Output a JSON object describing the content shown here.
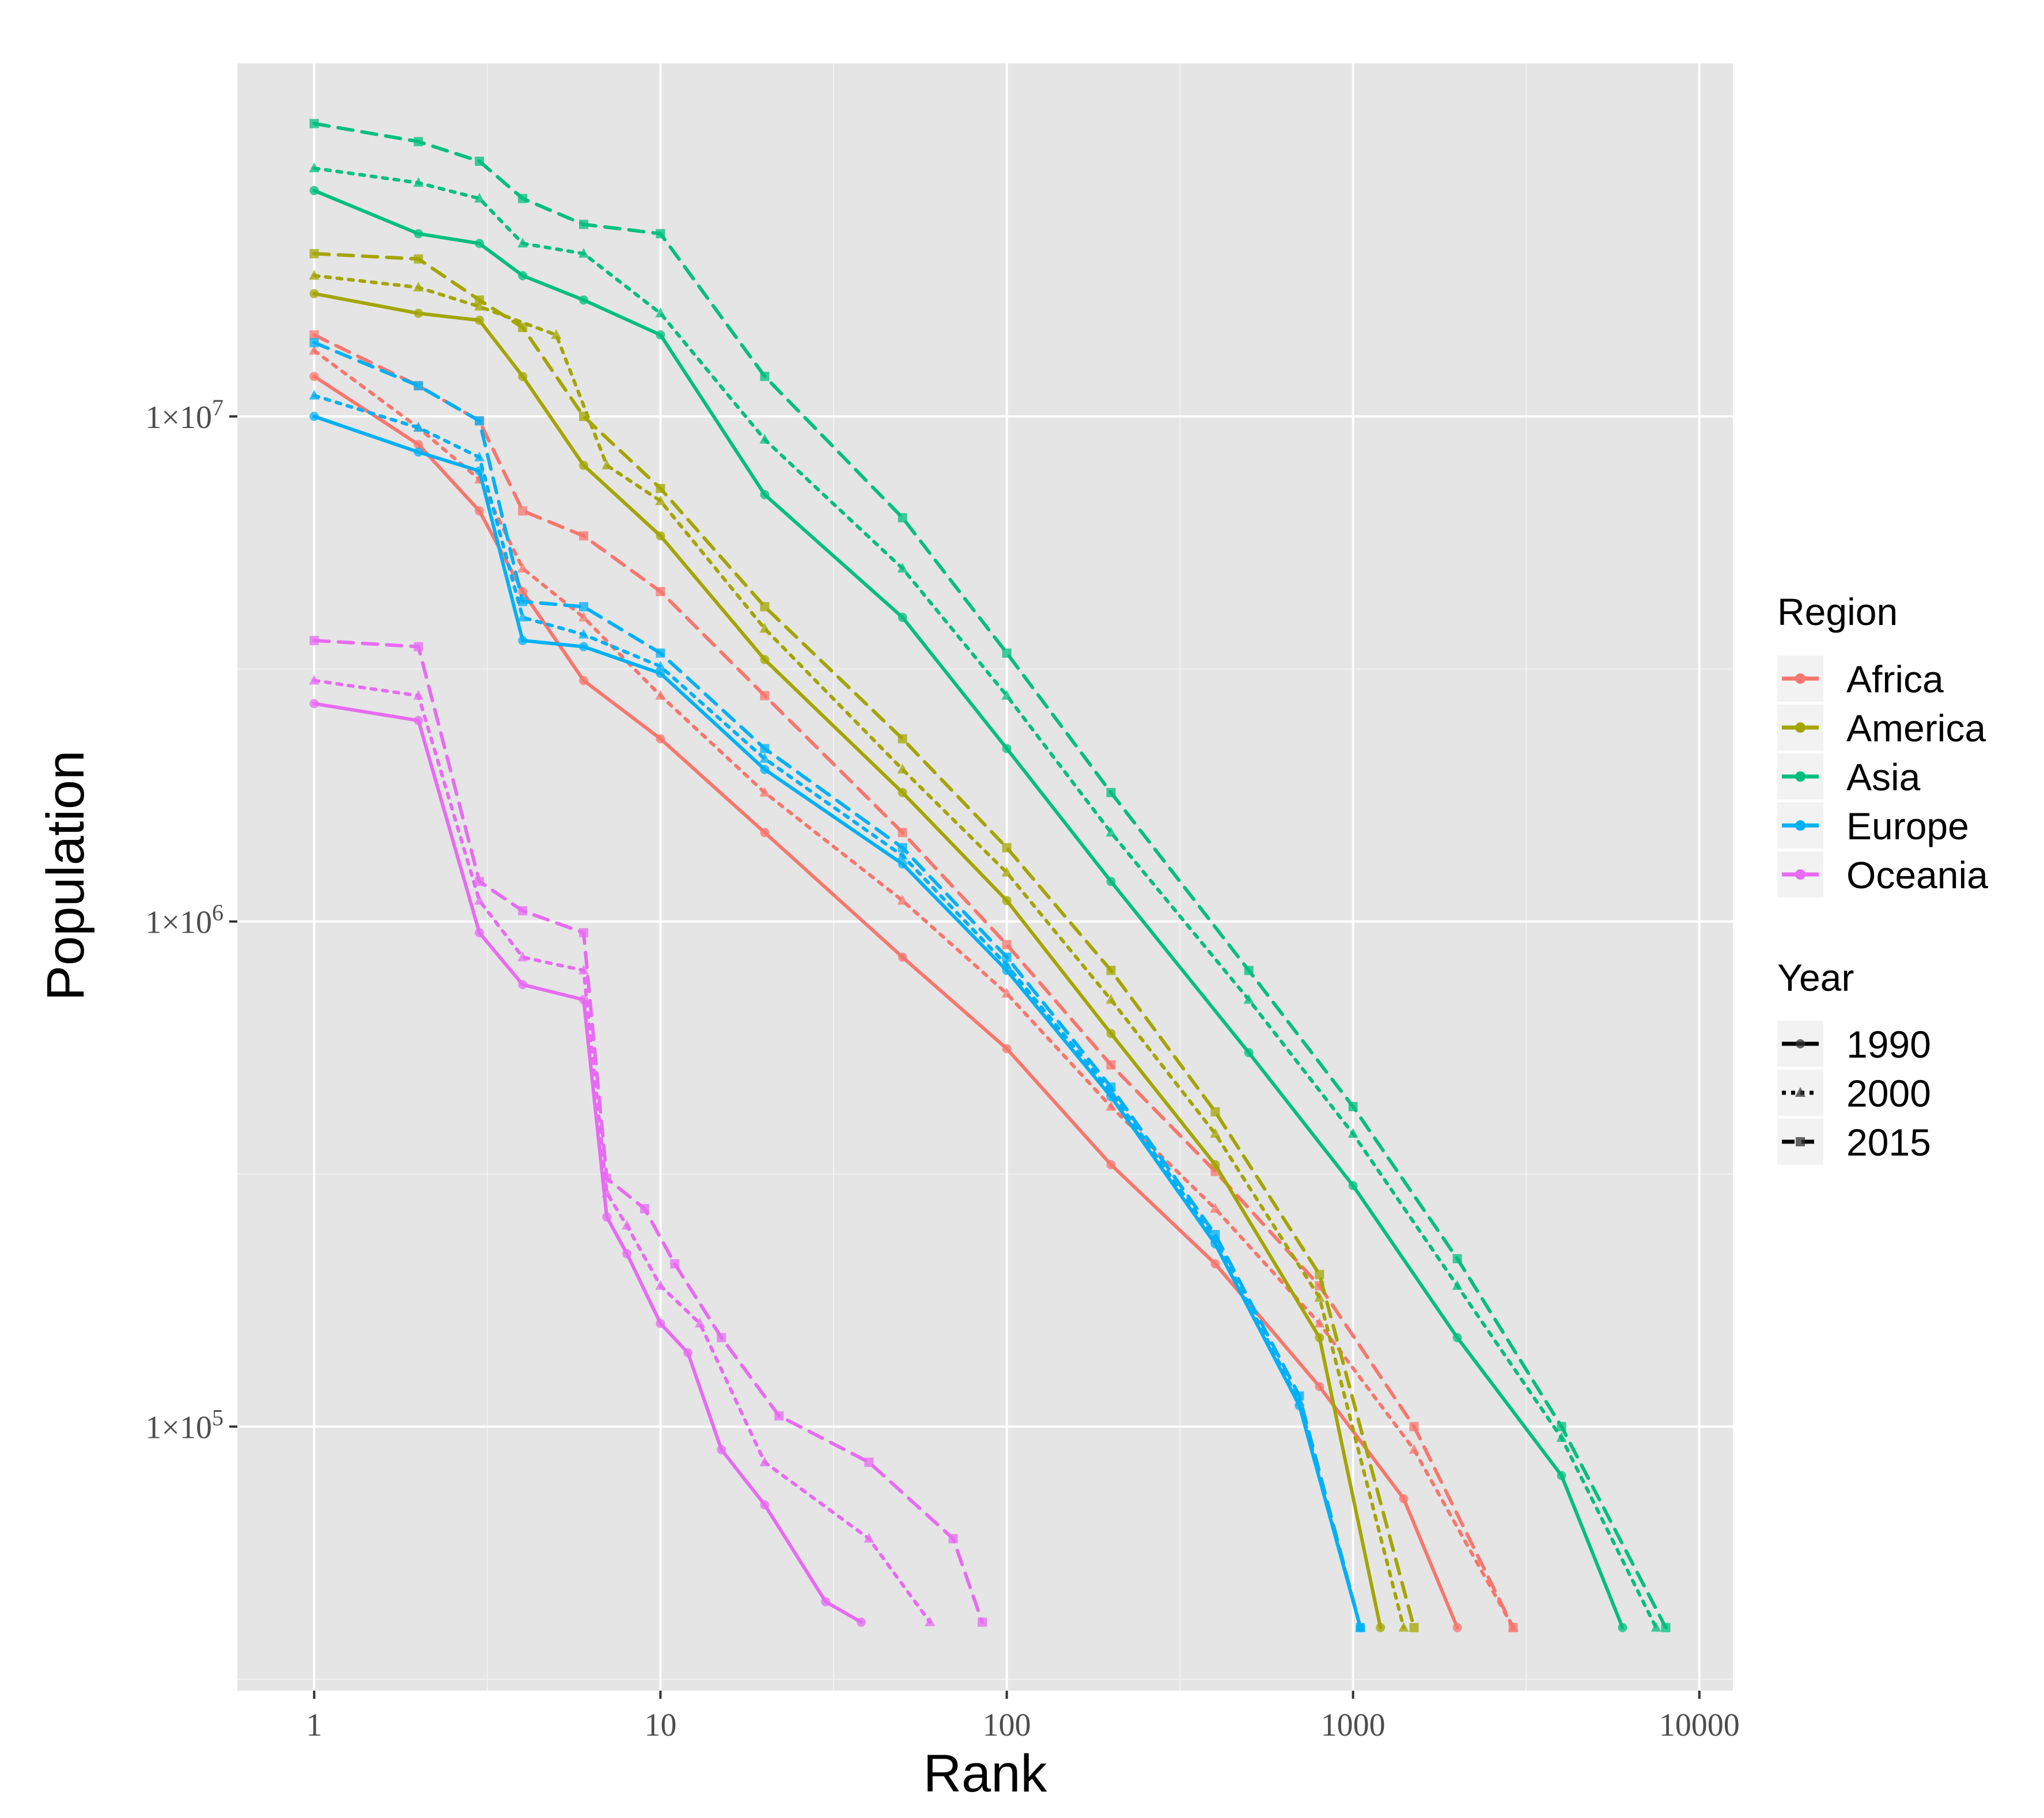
{
  "chart_data": {
    "type": "line",
    "title": "",
    "xlabel": "Rank",
    "ylabel": "Population",
    "xscale": "log10",
    "yscale": "log10",
    "xlim": [
      0.6,
      12500
    ],
    "ylim": [
      30000,
      50000000
    ],
    "x_ticks": [
      1,
      10,
      100,
      1000,
      10000
    ],
    "x_tick_labels": [
      "1",
      "10",
      "100",
      "1000",
      "10000"
    ],
    "y_ticks": [
      100000,
      1000000,
      10000000
    ],
    "y_tick_labels": [
      {
        "mantissa": "1×10",
        "exp": "5"
      },
      {
        "mantissa": "1×10",
        "exp": "6"
      },
      {
        "mantissa": "1×10",
        "exp": "7"
      }
    ],
    "grid": true,
    "background": "#e5e5e5",
    "legend": {
      "position": "right",
      "region_title": "Region",
      "year_title": "Year",
      "regions": [
        {
          "name": "Africa",
          "color": "#F8766D"
        },
        {
          "name": "America",
          "color": "#A3A500"
        },
        {
          "name": "Asia",
          "color": "#00BF7D"
        },
        {
          "name": "Europe",
          "color": "#00B0F6"
        },
        {
          "name": "Oceania",
          "color": "#E76BF3"
        }
      ],
      "years": [
        {
          "name": "1990",
          "dash": "solid",
          "marker": "circle"
        },
        {
          "name": "2000",
          "dash": "dotted",
          "marker": "triangle"
        },
        {
          "name": "2015",
          "dash": "dashed",
          "marker": "square"
        }
      ]
    },
    "series": [
      {
        "region": "Africa",
        "year": "1990",
        "points": [
          [
            1,
            12000000
          ],
          [
            2,
            8800000
          ],
          [
            3,
            6500000
          ],
          [
            4,
            4500000
          ],
          [
            6,
            3000000
          ],
          [
            10,
            2300000
          ],
          [
            20,
            1500000
          ],
          [
            50,
            850000
          ],
          [
            100,
            560000
          ],
          [
            200,
            330000
          ],
          [
            400,
            210000
          ],
          [
            800,
            120000
          ],
          [
            1400,
            72000
          ],
          [
            2000,
            40000
          ]
        ]
      },
      {
        "region": "Africa",
        "year": "2000",
        "points": [
          [
            1,
            13500000
          ],
          [
            2,
            9500000
          ],
          [
            3,
            7500000
          ],
          [
            4,
            5000000
          ],
          [
            6,
            4000000
          ],
          [
            10,
            2800000
          ],
          [
            20,
            1800000
          ],
          [
            50,
            1100000
          ],
          [
            100,
            720000
          ],
          [
            200,
            430000
          ],
          [
            400,
            270000
          ],
          [
            800,
            160000
          ],
          [
            1500,
            90000
          ],
          [
            2900,
            40000
          ]
        ]
      },
      {
        "region": "Africa",
        "year": "2015",
        "points": [
          [
            1,
            14500000
          ],
          [
            2,
            11500000
          ],
          [
            3,
            9800000
          ],
          [
            4,
            6500000
          ],
          [
            6,
            5800000
          ],
          [
            10,
            4500000
          ],
          [
            20,
            2800000
          ],
          [
            50,
            1500000
          ],
          [
            100,
            900000
          ],
          [
            200,
            520000
          ],
          [
            400,
            320000
          ],
          [
            800,
            190000
          ],
          [
            1500,
            100000
          ],
          [
            2900,
            40000
          ]
        ]
      },
      {
        "region": "America",
        "year": "1990",
        "points": [
          [
            1,
            17500000
          ],
          [
            2,
            16000000
          ],
          [
            3,
            15500000
          ],
          [
            4,
            12000000
          ],
          [
            6,
            8000000
          ],
          [
            10,
            5800000
          ],
          [
            20,
            3300000
          ],
          [
            50,
            1800000
          ],
          [
            100,
            1100000
          ],
          [
            200,
            600000
          ],
          [
            400,
            330000
          ],
          [
            800,
            150000
          ],
          [
            1200,
            40000
          ]
        ]
      },
      {
        "region": "America",
        "year": "2000",
        "points": [
          [
            1,
            19000000
          ],
          [
            2,
            18000000
          ],
          [
            3,
            16500000
          ],
          [
            5,
            14500000
          ],
          [
            7,
            8000000
          ],
          [
            10,
            6800000
          ],
          [
            20,
            3800000
          ],
          [
            50,
            2000000
          ],
          [
            100,
            1250000
          ],
          [
            200,
            700000
          ],
          [
            400,
            380000
          ],
          [
            800,
            180000
          ],
          [
            1400,
            40000
          ]
        ]
      },
      {
        "region": "America",
        "year": "2015",
        "points": [
          [
            1,
            21000000
          ],
          [
            2,
            20500000
          ],
          [
            3,
            17000000
          ],
          [
            4,
            15000000
          ],
          [
            6,
            10000000
          ],
          [
            10,
            7200000
          ],
          [
            20,
            4200000
          ],
          [
            50,
            2300000
          ],
          [
            100,
            1400000
          ],
          [
            200,
            800000
          ],
          [
            400,
            420000
          ],
          [
            800,
            200000
          ],
          [
            1500,
            40000
          ]
        ]
      },
      {
        "region": "Asia",
        "year": "1990",
        "points": [
          [
            1,
            28000000
          ],
          [
            2,
            23000000
          ],
          [
            3,
            22000000
          ],
          [
            4,
            19000000
          ],
          [
            6,
            17000000
          ],
          [
            10,
            14500000
          ],
          [
            20,
            7000000
          ],
          [
            50,
            4000000
          ],
          [
            100,
            2200000
          ],
          [
            200,
            1200000
          ],
          [
            500,
            550000
          ],
          [
            1000,
            300000
          ],
          [
            2000,
            150000
          ],
          [
            4000,
            80000
          ],
          [
            6000,
            40000
          ]
        ]
      },
      {
        "region": "Asia",
        "year": "2000",
        "points": [
          [
            1,
            31000000
          ],
          [
            2,
            29000000
          ],
          [
            3,
            27000000
          ],
          [
            4,
            22000000
          ],
          [
            6,
            21000000
          ],
          [
            10,
            16000000
          ],
          [
            20,
            9000000
          ],
          [
            50,
            5000000
          ],
          [
            100,
            2800000
          ],
          [
            200,
            1500000
          ],
          [
            500,
            700000
          ],
          [
            1000,
            380000
          ],
          [
            2000,
            190000
          ],
          [
            4000,
            95000
          ],
          [
            7500,
            40000
          ]
        ]
      },
      {
        "region": "Asia",
        "year": "2015",
        "points": [
          [
            1,
            38000000
          ],
          [
            2,
            35000000
          ],
          [
            3,
            32000000
          ],
          [
            4,
            27000000
          ],
          [
            6,
            24000000
          ],
          [
            10,
            23000000
          ],
          [
            20,
            12000000
          ],
          [
            50,
            6300000
          ],
          [
            100,
            3400000
          ],
          [
            200,
            1800000
          ],
          [
            500,
            800000
          ],
          [
            1000,
            430000
          ],
          [
            2000,
            215000
          ],
          [
            4000,
            100000
          ],
          [
            8000,
            40000
          ]
        ]
      },
      {
        "region": "Europe",
        "year": "1990",
        "points": [
          [
            1,
            10000000
          ],
          [
            2,
            8500000
          ],
          [
            3,
            7800000
          ],
          [
            4,
            3600000
          ],
          [
            6,
            3500000
          ],
          [
            10,
            3100000
          ],
          [
            20,
            2000000
          ],
          [
            50,
            1300000
          ],
          [
            100,
            800000
          ],
          [
            200,
            450000
          ],
          [
            400,
            230000
          ],
          [
            700,
            110000
          ],
          [
            1050,
            40000
          ]
        ]
      },
      {
        "region": "Europe",
        "year": "2000",
        "points": [
          [
            1,
            11000000
          ],
          [
            2,
            9500000
          ],
          [
            3,
            8300000
          ],
          [
            4,
            4000000
          ],
          [
            6,
            3700000
          ],
          [
            10,
            3200000
          ],
          [
            20,
            2100000
          ],
          [
            50,
            1350000
          ],
          [
            100,
            820000
          ],
          [
            200,
            460000
          ],
          [
            400,
            235000
          ],
          [
            700,
            112000
          ],
          [
            1050,
            40000
          ]
        ]
      },
      {
        "region": "Europe",
        "year": "2015",
        "points": [
          [
            1,
            14000000
          ],
          [
            2,
            11500000
          ],
          [
            3,
            9800000
          ],
          [
            4,
            4300000
          ],
          [
            6,
            4200000
          ],
          [
            10,
            3400000
          ],
          [
            20,
            2200000
          ],
          [
            50,
            1400000
          ],
          [
            100,
            850000
          ],
          [
            200,
            470000
          ],
          [
            400,
            240000
          ],
          [
            700,
            115000
          ],
          [
            1050,
            40000
          ]
        ]
      },
      {
        "region": "Oceania",
        "year": "1990",
        "points": [
          [
            1,
            2700000
          ],
          [
            2,
            2500000
          ],
          [
            3,
            950000
          ],
          [
            4,
            750000
          ],
          [
            6,
            700000
          ],
          [
            7,
            260000
          ],
          [
            8,
            220000
          ],
          [
            10,
            160000
          ],
          [
            12,
            140000
          ],
          [
            15,
            90000
          ],
          [
            20,
            70000
          ],
          [
            30,
            45000
          ],
          [
            38,
            41000
          ]
        ]
      },
      {
        "region": "Oceania",
        "year": "2000",
        "points": [
          [
            1,
            3000000
          ],
          [
            2,
            2800000
          ],
          [
            3,
            1100000
          ],
          [
            4,
            850000
          ],
          [
            6,
            800000
          ],
          [
            7,
            290000
          ],
          [
            8,
            250000
          ],
          [
            10,
            190000
          ],
          [
            13,
            160000
          ],
          [
            20,
            85000
          ],
          [
            40,
            60000
          ],
          [
            60,
            41000
          ]
        ]
      },
      {
        "region": "Oceania",
        "year": "2015",
        "points": [
          [
            1,
            3600000
          ],
          [
            2,
            3500000
          ],
          [
            3,
            1200000
          ],
          [
            4,
            1050000
          ],
          [
            6,
            950000
          ],
          [
            7,
            310000
          ],
          [
            9,
            270000
          ],
          [
            11,
            210000
          ],
          [
            15,
            150000
          ],
          [
            22,
            105000
          ],
          [
            40,
            85000
          ],
          [
            70,
            60000
          ],
          [
            85,
            41000
          ]
        ]
      }
    ]
  }
}
